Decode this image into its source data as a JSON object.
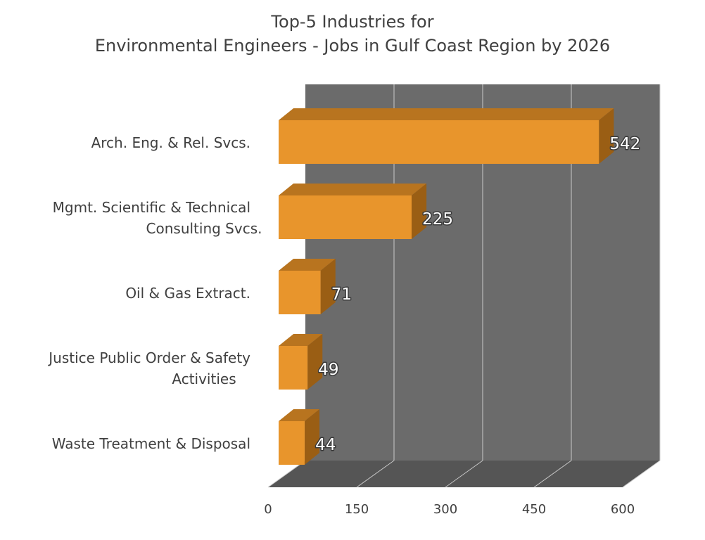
{
  "chart_data": {
    "type": "bar",
    "orientation": "horizontal",
    "title_line1": "Top-5 Industries for",
    "title_line2": "Environmental Engineers - Jobs in Gulf Coast Region by 2026",
    "categories": [
      [
        "Arch. Eng. & Rel. Svcs."
      ],
      [
        "Mgmt. Scientific & Technical",
        "Consulting Svcs."
      ],
      [
        "Oil & Gas Extract."
      ],
      [
        "Justice Public Order & Safety",
        "Activities"
      ],
      [
        "Waste Treatment & Disposal"
      ]
    ],
    "values": [
      542,
      225,
      71,
      49,
      44
    ],
    "data_labels": [
      "542",
      "225",
      "71",
      "49",
      "44"
    ],
    "xlim": [
      0,
      600
    ],
    "x_ticks": [
      0,
      150,
      300,
      450,
      600
    ],
    "x_tick_labels": [
      "0",
      "150",
      "300",
      "450",
      "600"
    ],
    "grid": true,
    "style": "3d",
    "colors": {
      "bar_front": "#E8952C",
      "bar_top": "#B8741F",
      "bar_side": "#9A5E14",
      "back_wall": "#6B6B6B",
      "floor": "#555555",
      "grid": "#C8C8C8"
    }
  }
}
